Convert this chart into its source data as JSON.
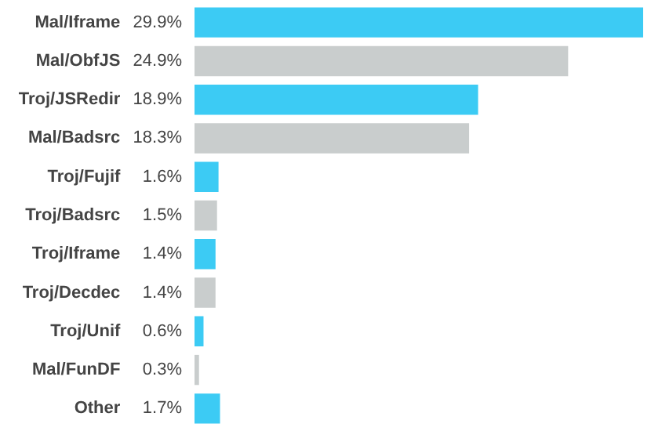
{
  "chart_data": {
    "type": "bar",
    "orientation": "horizontal",
    "categories": [
      "Mal/Iframe",
      "Mal/ObfJS",
      "Troj/JSRedir",
      "Mal/Badsrc",
      "Troj/Fujif",
      "Troj/Badsrc",
      "Troj/Iframe",
      "Troj/Decdec",
      "Troj/Unif",
      "Mal/FunDF",
      "Other"
    ],
    "values": [
      29.9,
      24.9,
      18.9,
      18.3,
      1.6,
      1.5,
      1.4,
      1.4,
      0.6,
      0.3,
      1.7
    ],
    "value_labels": [
      "29.9%",
      "24.9%",
      "18.9%",
      "18.3%",
      "1.6%",
      "1.5%",
      "1.4%",
      "1.4%",
      "0.6%",
      "0.3%",
      "1.7%"
    ],
    "colors": [
      "#3ccbf4",
      "#c9cdcd",
      "#3ccbf4",
      "#c9cdcd",
      "#3ccbf4",
      "#c9cdcd",
      "#3ccbf4",
      "#c9cdcd",
      "#3ccbf4",
      "#c9cdcd",
      "#3ccbf4"
    ],
    "data_labels": false
  }
}
